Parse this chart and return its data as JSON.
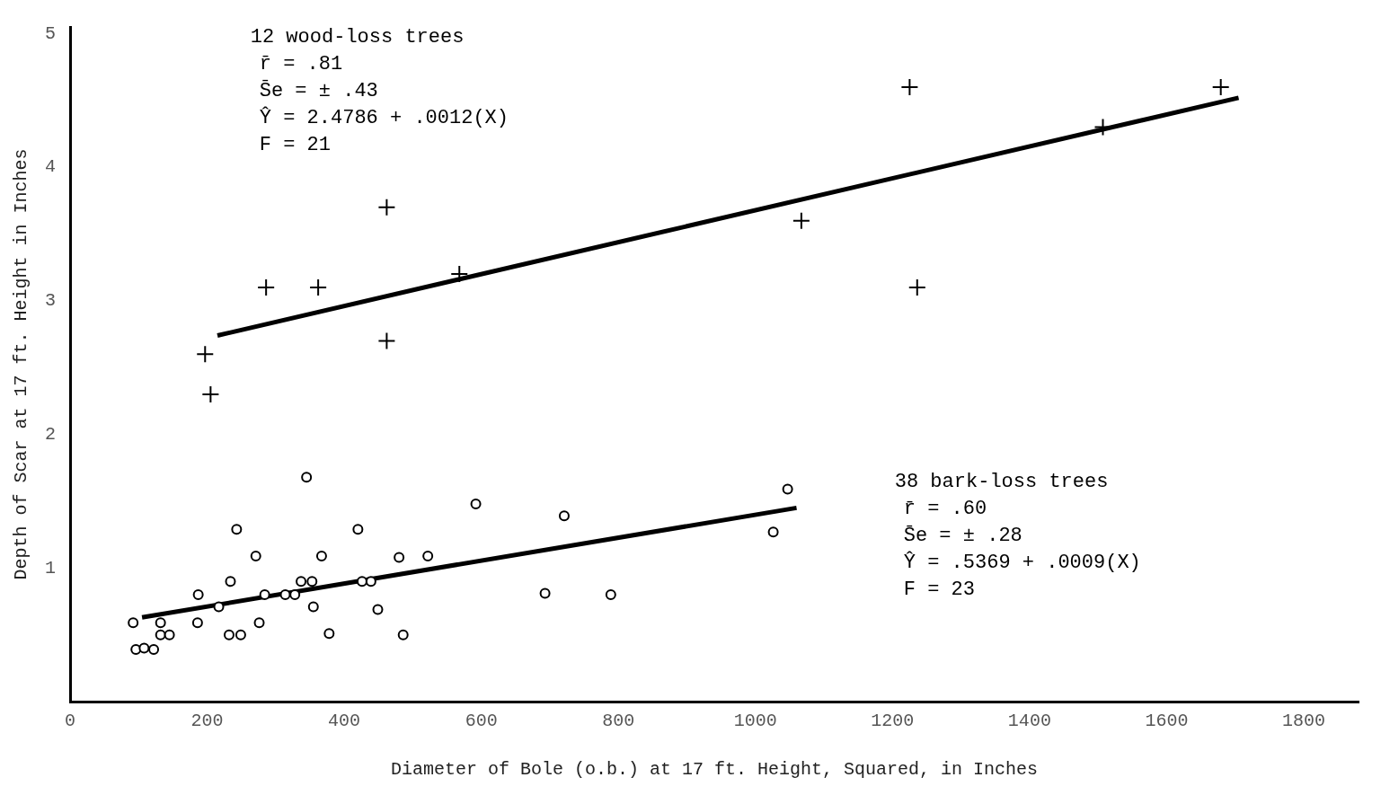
{
  "chart_data": {
    "type": "scatter",
    "xlabel": "Diameter of Bole (o.b.) at 17 ft. Height, Squared, in Inches",
    "ylabel": "Depth of Scar at 17 ft. Height in Inches",
    "xlim": [
      0,
      1880
    ],
    "xticks": [
      0,
      200,
      400,
      600,
      800,
      1000,
      1200,
      1400,
      1600,
      1800
    ],
    "ylim": [
      0,
      5.05
    ],
    "yticks": [
      1,
      2,
      3,
      4,
      5
    ],
    "grid": false,
    "legend": false,
    "annotations": [
      "12 wood-loss trees\nr̄ = .81\nS̄e = ± .43\nŶ = 2.4786 + .0012(X)\nF = 21",
      "38 bark-loss trees\nr̄ = .60\nS̄e = ± .28\nŶ = .5369 + .0009(X)\nF = 23"
    ],
    "series": [
      {
        "type": "scatter",
        "marker": "cross",
        "color": "#000000",
        "x": [
          197,
          205,
          286,
          362,
          462,
          462,
          568,
          1067,
          1225,
          1236,
          1507,
          1679
        ],
        "values": [
          2.6,
          2.3,
          3.1,
          3.1,
          3.7,
          2.7,
          3.2,
          3.6,
          4.6,
          3.1,
          4.3,
          4.6
        ]
      },
      {
        "type": "line",
        "marker": "none",
        "line_style": "solid",
        "color": "#000000",
        "x": [
          215,
          1705
        ],
        "values": [
          2.74,
          4.52
        ]
      },
      {
        "type": "scatter",
        "marker": "circle",
        "color": "#000000",
        "x": [
          345,
          592,
          243,
          420,
          271,
          367,
          480,
          522,
          234,
          337,
          353,
          426,
          439,
          187,
          217,
          284,
          314,
          328,
          355,
          449,
          92,
          132,
          186,
          276,
          132,
          145,
          232,
          249,
          378,
          486,
          96,
          108,
          122,
          693,
          721,
          789,
          1026,
          1047
        ],
        "values": [
          1.68,
          1.48,
          1.29,
          1.29,
          1.09,
          1.09,
          1.08,
          1.09,
          0.9,
          0.9,
          0.9,
          0.9,
          0.9,
          0.8,
          0.71,
          0.8,
          0.8,
          0.8,
          0.71,
          0.69,
          0.59,
          0.59,
          0.59,
          0.59,
          0.5,
          0.5,
          0.5,
          0.5,
          0.51,
          0.5,
          0.39,
          0.4,
          0.39,
          0.81,
          1.39,
          0.8,
          1.27,
          1.59
        ]
      },
      {
        "type": "line",
        "marker": "none",
        "line_style": "solid",
        "color": "#000000",
        "x": [
          105,
          1060
        ],
        "values": [
          0.63,
          1.45
        ]
      }
    ]
  }
}
